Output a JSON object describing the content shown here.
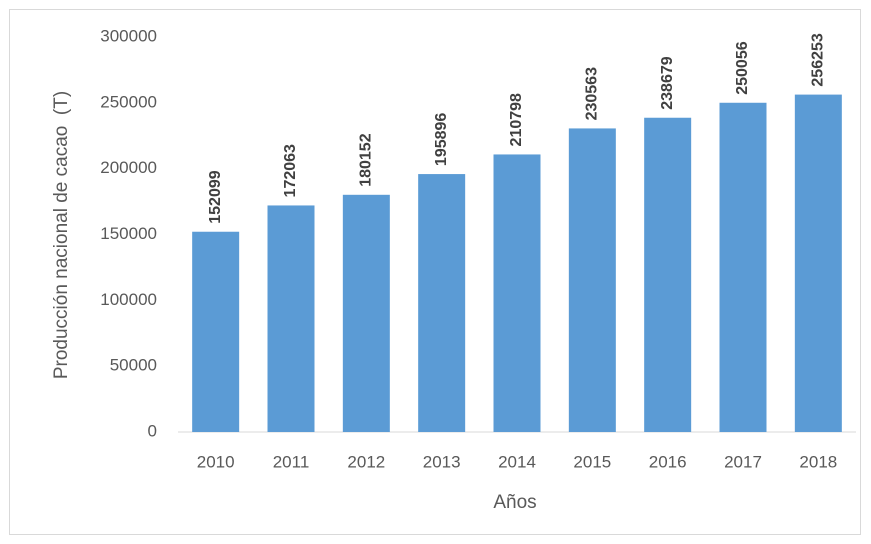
{
  "chart_data": {
    "type": "bar",
    "categories": [
      "2010",
      "2011",
      "2012",
      "2013",
      "2014",
      "2015",
      "2016",
      "2017",
      "2018"
    ],
    "values": [
      152099,
      172063,
      180152,
      195896,
      210798,
      230563,
      238679,
      250056,
      256253
    ],
    "color": "#5b9bd5",
    "ylim": [
      0,
      300000
    ],
    "yticks": [
      0,
      50000,
      100000,
      150000,
      200000,
      250000,
      300000
    ],
    "grid": false,
    "y_label": "Producción nacional de cacao  (T)",
    "x_label": "Años"
  }
}
